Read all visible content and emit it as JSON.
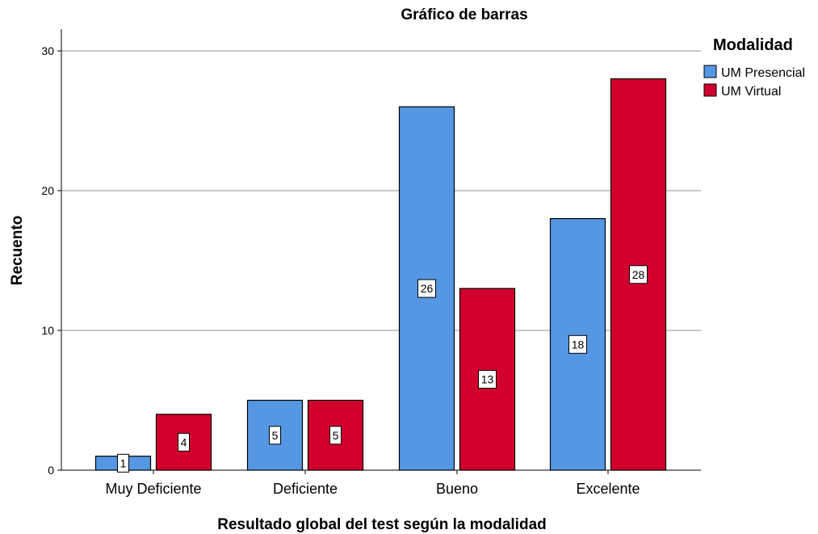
{
  "chart_data": {
    "type": "bar",
    "title": "Gráfico de barras",
    "xlabel": "Resultado global del test según la modalidad",
    "ylabel": "Recuento",
    "categories": [
      "Muy Deficiente",
      "Deficiente",
      "Bueno",
      "Excelente"
    ],
    "series": [
      {
        "name": "UM Presencial",
        "values": [
          1,
          5,
          26,
          18
        ],
        "color": "#5597e3"
      },
      {
        "name": "UM Virtual",
        "values": [
          4,
          5,
          13,
          28
        ],
        "color": "#d2002c"
      }
    ],
    "yticks": [
      "0",
      "10",
      "20",
      "30"
    ],
    "ylim": [
      0,
      31.5
    ],
    "grid": true,
    "legend": {
      "title": "Modalidad",
      "placement": "top-right"
    },
    "data_labels": true
  }
}
